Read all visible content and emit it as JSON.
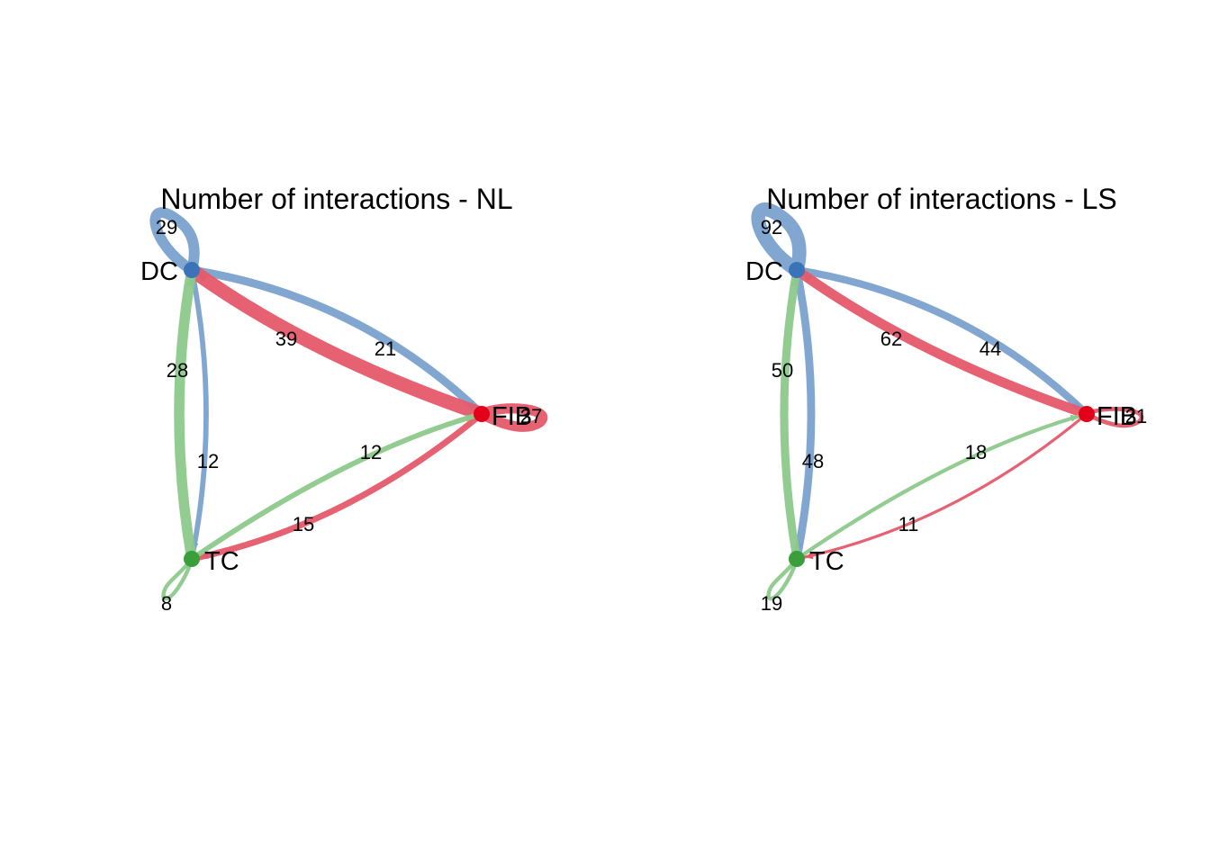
{
  "colors": {
    "DC": "#3b73b9",
    "FIB": "#e3001b",
    "TC": "#3a9e3a"
  },
  "panels": [
    {
      "title": "Number of interactions - NL",
      "nodes": [
        {
          "id": "DC",
          "label": "DC"
        },
        {
          "id": "FIB",
          "label": "FIB"
        },
        {
          "id": "TC",
          "label": "TC"
        }
      ],
      "edges": [
        {
          "source": "DC",
          "target": "DC",
          "value": 29
        },
        {
          "source": "DC",
          "target": "FIB",
          "value": 21
        },
        {
          "source": "DC",
          "target": "TC",
          "value": 12
        },
        {
          "source": "FIB",
          "target": "DC",
          "value": 39
        },
        {
          "source": "FIB",
          "target": "FIB",
          "value": 27
        },
        {
          "source": "FIB",
          "target": "TC",
          "value": 15
        },
        {
          "source": "TC",
          "target": "DC",
          "value": 28
        },
        {
          "source": "TC",
          "target": "FIB",
          "value": 12
        },
        {
          "source": "TC",
          "target": "TC",
          "value": 8
        }
      ]
    },
    {
      "title": "Number of interactions - LS",
      "nodes": [
        {
          "id": "DC",
          "label": "DC"
        },
        {
          "id": "FIB",
          "label": "FIB"
        },
        {
          "id": "TC",
          "label": "TC"
        }
      ],
      "edges": [
        {
          "source": "DC",
          "target": "DC",
          "value": 92
        },
        {
          "source": "DC",
          "target": "FIB",
          "value": 44
        },
        {
          "source": "DC",
          "target": "TC",
          "value": 48
        },
        {
          "source": "FIB",
          "target": "DC",
          "value": 62
        },
        {
          "source": "FIB",
          "target": "FIB",
          "value": 21
        },
        {
          "source": "FIB",
          "target": "TC",
          "value": 11
        },
        {
          "source": "TC",
          "target": "DC",
          "value": 50
        },
        {
          "source": "TC",
          "target": "FIB",
          "value": 18
        },
        {
          "source": "TC",
          "target": "TC",
          "value": 19
        }
      ]
    }
  ]
}
